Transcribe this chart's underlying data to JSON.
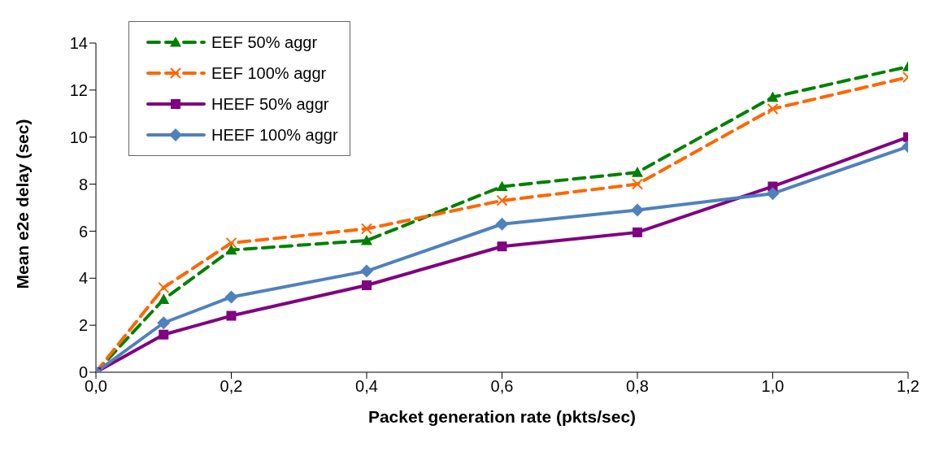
{
  "chart_data": {
    "type": "line",
    "xlabel": "Packet generation rate (pkts/sec)",
    "ylabel": "Mean e2e delay (sec)",
    "x": [
      0,
      0.1,
      0.2,
      0.4,
      0.6,
      0.8,
      1.0,
      1.2
    ],
    "series": [
      {
        "name": "EEF 50% aggr",
        "color": "#008000",
        "marker": "triangle",
        "line_style": "dashed",
        "values": [
          0,
          3.1,
          5.2,
          5.6,
          7.9,
          8.5,
          11.7,
          13.0
        ]
      },
      {
        "name": "EEF 100% aggr",
        "color": "#ff6600",
        "marker": "cross",
        "line_style": "dashed",
        "values": [
          0,
          3.6,
          5.5,
          6.1,
          7.3,
          8.0,
          11.2,
          12.55
        ]
      },
      {
        "name": "HEEF 50% aggr",
        "color": "#800080",
        "marker": "square",
        "line_style": "solid",
        "values": [
          0,
          1.6,
          2.4,
          3.7,
          5.35,
          5.95,
          7.9,
          10.0
        ]
      },
      {
        "name": "HEEF 100% aggr",
        "color": "#4f81bd",
        "marker": "diamond",
        "line_style": "solid",
        "values": [
          0,
          2.1,
          3.2,
          4.3,
          6.3,
          6.9,
          7.6,
          9.6
        ]
      }
    ],
    "xlim": [
      0,
      1.2
    ],
    "xticks": [
      {
        "value": 0,
        "label": "0,0"
      },
      {
        "value": 0.2,
        "label": "0,2"
      },
      {
        "value": 0.4,
        "label": "0,4"
      },
      {
        "value": 0.6,
        "label": "0,6"
      },
      {
        "value": 0.8,
        "label": "0,8"
      },
      {
        "value": 1.0,
        "label": "1,0"
      },
      {
        "value": 1.2,
        "label": "1,2"
      }
    ],
    "ylim": [
      0,
      14
    ],
    "yticks": [
      0,
      2,
      4,
      6,
      8,
      10,
      12,
      14
    ],
    "grid": false,
    "legend": "top left"
  }
}
